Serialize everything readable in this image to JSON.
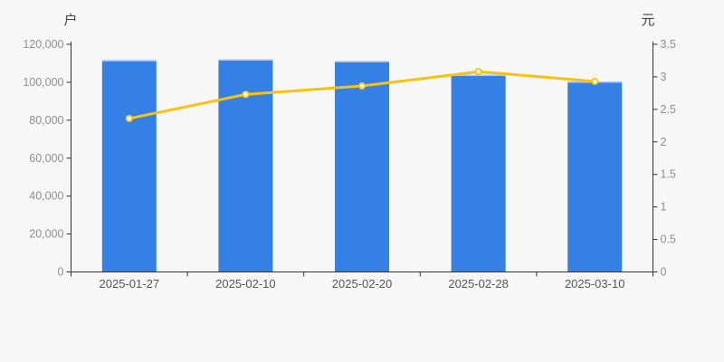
{
  "page": {
    "background": "#f7f7f7"
  },
  "chart_data": {
    "type": "bar",
    "subtype": "dual-axis bar + line",
    "categories": [
      "2025-01-27",
      "2025-02-10",
      "2025-02-20",
      "2025-02-28",
      "2025-03-10"
    ],
    "series": [
      {
        "name": "户",
        "type": "bar",
        "y_axis": "left",
        "unit": "户",
        "color": "#3580e4",
        "values": [
          111700,
          112100,
          111200,
          104000,
          100400
        ]
      },
      {
        "name": "元",
        "type": "line",
        "y_axis": "right",
        "unit": "元",
        "color": "#f8c20e",
        "marker": "circle-white-fill",
        "values": [
          2.36,
          2.73,
          2.86,
          3.08,
          2.93
        ]
      }
    ],
    "left_axis": {
      "label": "户",
      "min": 0,
      "max": 120000,
      "interval": 20000,
      "tick_labels": [
        "0",
        "20,000",
        "40,000",
        "60,000",
        "80,000",
        "100,000",
        "120,000"
      ]
    },
    "right_axis": {
      "label": "元",
      "min": 0,
      "max": 3.5,
      "interval": 0.5,
      "tick_labels": [
        "0",
        "0.5",
        "1",
        "1.5",
        "2",
        "2.5",
        "3",
        "3.5"
      ]
    },
    "x_axis": {
      "tick_labels": [
        "2025-01-27",
        "2025-02-10",
        "2025-02-20",
        "2025-02-28",
        "2025-03-10"
      ]
    },
    "grid": false,
    "legend": false,
    "colors": {
      "bar": "#3580e4",
      "bar_top_edge": "#aac6ee",
      "line": "#f8c20e",
      "line_highlight": "#ffd75e",
      "marker_fill": "#ffffff",
      "axis": "#333333",
      "y_tick_label": "#8f8f8f",
      "x_tick_label": "#555555",
      "axis_unit_label": "#444444",
      "background": "#f7f7f7"
    }
  }
}
